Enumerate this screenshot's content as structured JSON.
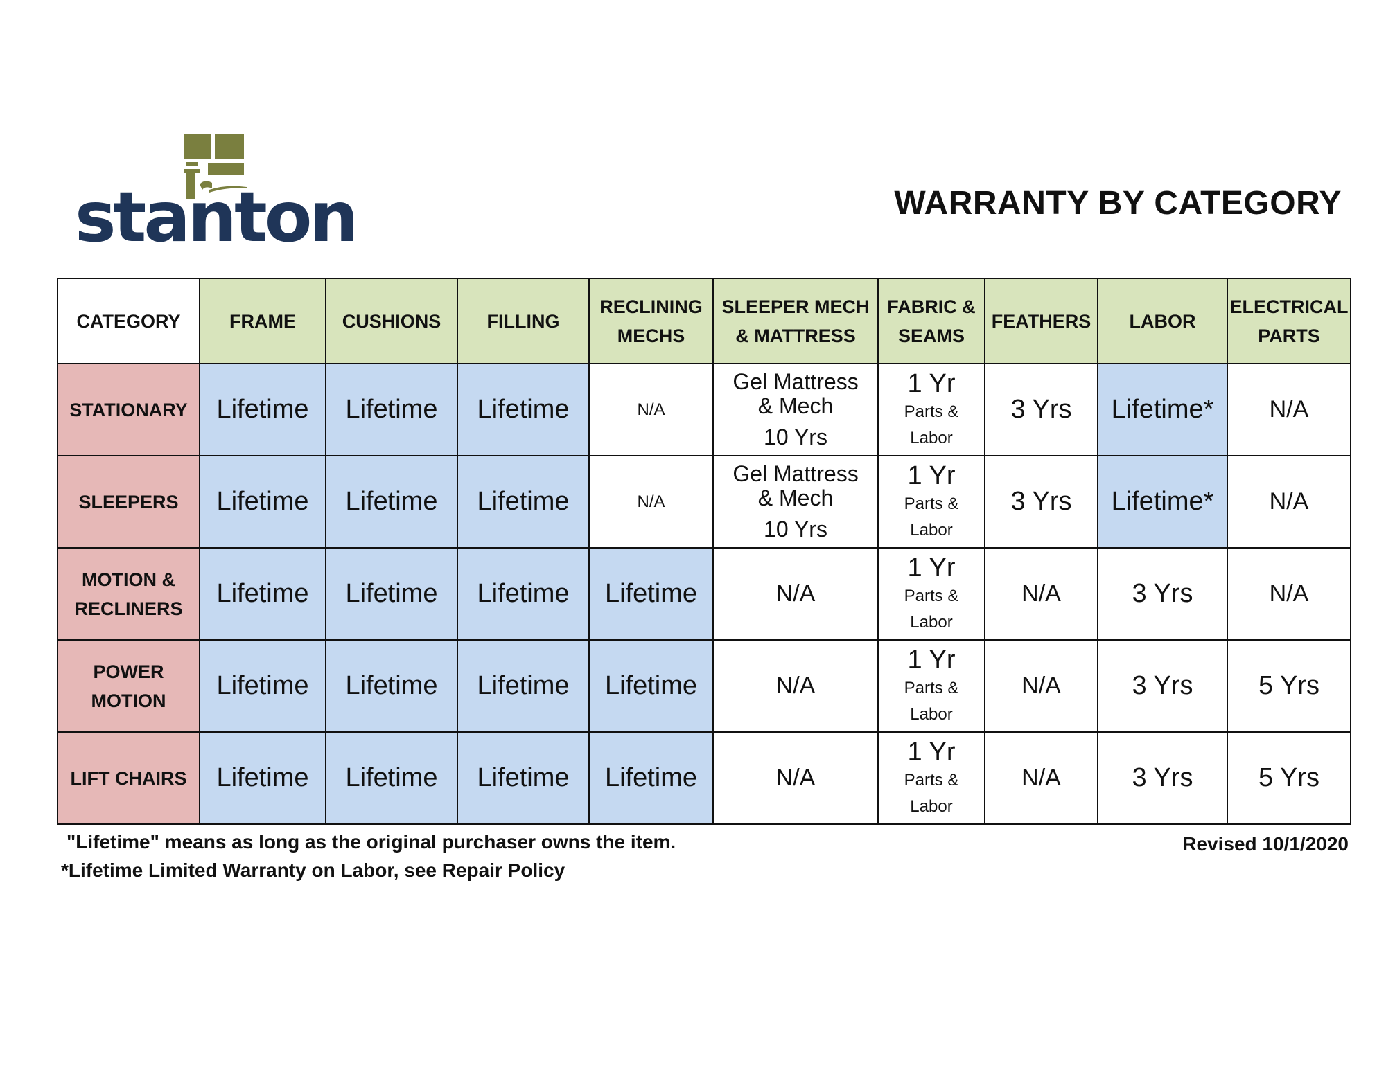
{
  "brand": {
    "name": "stanton",
    "mark_color": "#7a7f3f",
    "text_color": "#1f3558"
  },
  "title": "WARRANTY BY CATEGORY",
  "colors": {
    "header_bg": "#d8e4bc",
    "category_bg": "#e6b8b7",
    "lifetime_bg": "#c5d9f1",
    "border": "#111111"
  },
  "table": {
    "columns": [
      "CATEGORY",
      "FRAME",
      "CUSHIONS",
      "FILLING",
      "RECLINING MECHS",
      "SLEEPER MECH & MATTRESS",
      "FABRIC & SEAMS",
      "FEATHERS",
      "LABOR",
      "ELECTRICAL PARTS"
    ],
    "rows": [
      {
        "category": "STATIONARY",
        "frame": "Lifetime",
        "cushions": "Lifetime",
        "filling": "Lifetime",
        "reclining": "N/A",
        "sleeper": {
          "line1": "Gel Mattress",
          "line2": "& Mech",
          "line3": "10 Yrs"
        },
        "fabric": {
          "main": "1 Yr",
          "line2": "Parts &",
          "line3": "Labor"
        },
        "feathers": "3 Yrs",
        "labor": "Lifetime*",
        "electrical": "N/A"
      },
      {
        "category": "SLEEPERS",
        "frame": "Lifetime",
        "cushions": "Lifetime",
        "filling": "Lifetime",
        "reclining": "N/A",
        "sleeper": {
          "line1": "Gel Mattress",
          "line2": "& Mech",
          "line3": "10 Yrs"
        },
        "fabric": {
          "main": "1 Yr",
          "line2": "Parts &",
          "line3": "Labor"
        },
        "feathers": "3 Yrs",
        "labor": "Lifetime*",
        "electrical": "N/A"
      },
      {
        "category": "MOTION & RECLINERS",
        "frame": "Lifetime",
        "cushions": "Lifetime",
        "filling": "Lifetime",
        "reclining": "Lifetime",
        "sleeper": "N/A",
        "fabric": {
          "main": "1 Yr",
          "line2": "Parts &",
          "line3": "Labor"
        },
        "feathers": "N/A",
        "labor": "3 Yrs",
        "electrical": "N/A"
      },
      {
        "category": "POWER MOTION",
        "frame": "Lifetime",
        "cushions": "Lifetime",
        "filling": "Lifetime",
        "reclining": "Lifetime",
        "sleeper": "N/A",
        "fabric": {
          "main": "1 Yr",
          "line2": "Parts &",
          "line3": "Labor"
        },
        "feathers": "N/A",
        "labor": "3 Yrs",
        "electrical": "5 Yrs"
      },
      {
        "category": "LIFT CHAIRS",
        "frame": "Lifetime",
        "cushions": "Lifetime",
        "filling": "Lifetime",
        "reclining": "Lifetime",
        "sleeper": "N/A",
        "fabric": {
          "main": "1 Yr",
          "line2": "Parts &",
          "line3": "Labor"
        },
        "feathers": "N/A",
        "labor": "3 Yrs",
        "electrical": "5 Yrs"
      }
    ]
  },
  "footnotes": {
    "lifetime_def": "\"Lifetime\" means as long as the original purchaser owns the item.",
    "labor_note": "*Lifetime Limited Warranty on Labor, see Repair Policy",
    "revised": "Revised 10/1/2020"
  }
}
